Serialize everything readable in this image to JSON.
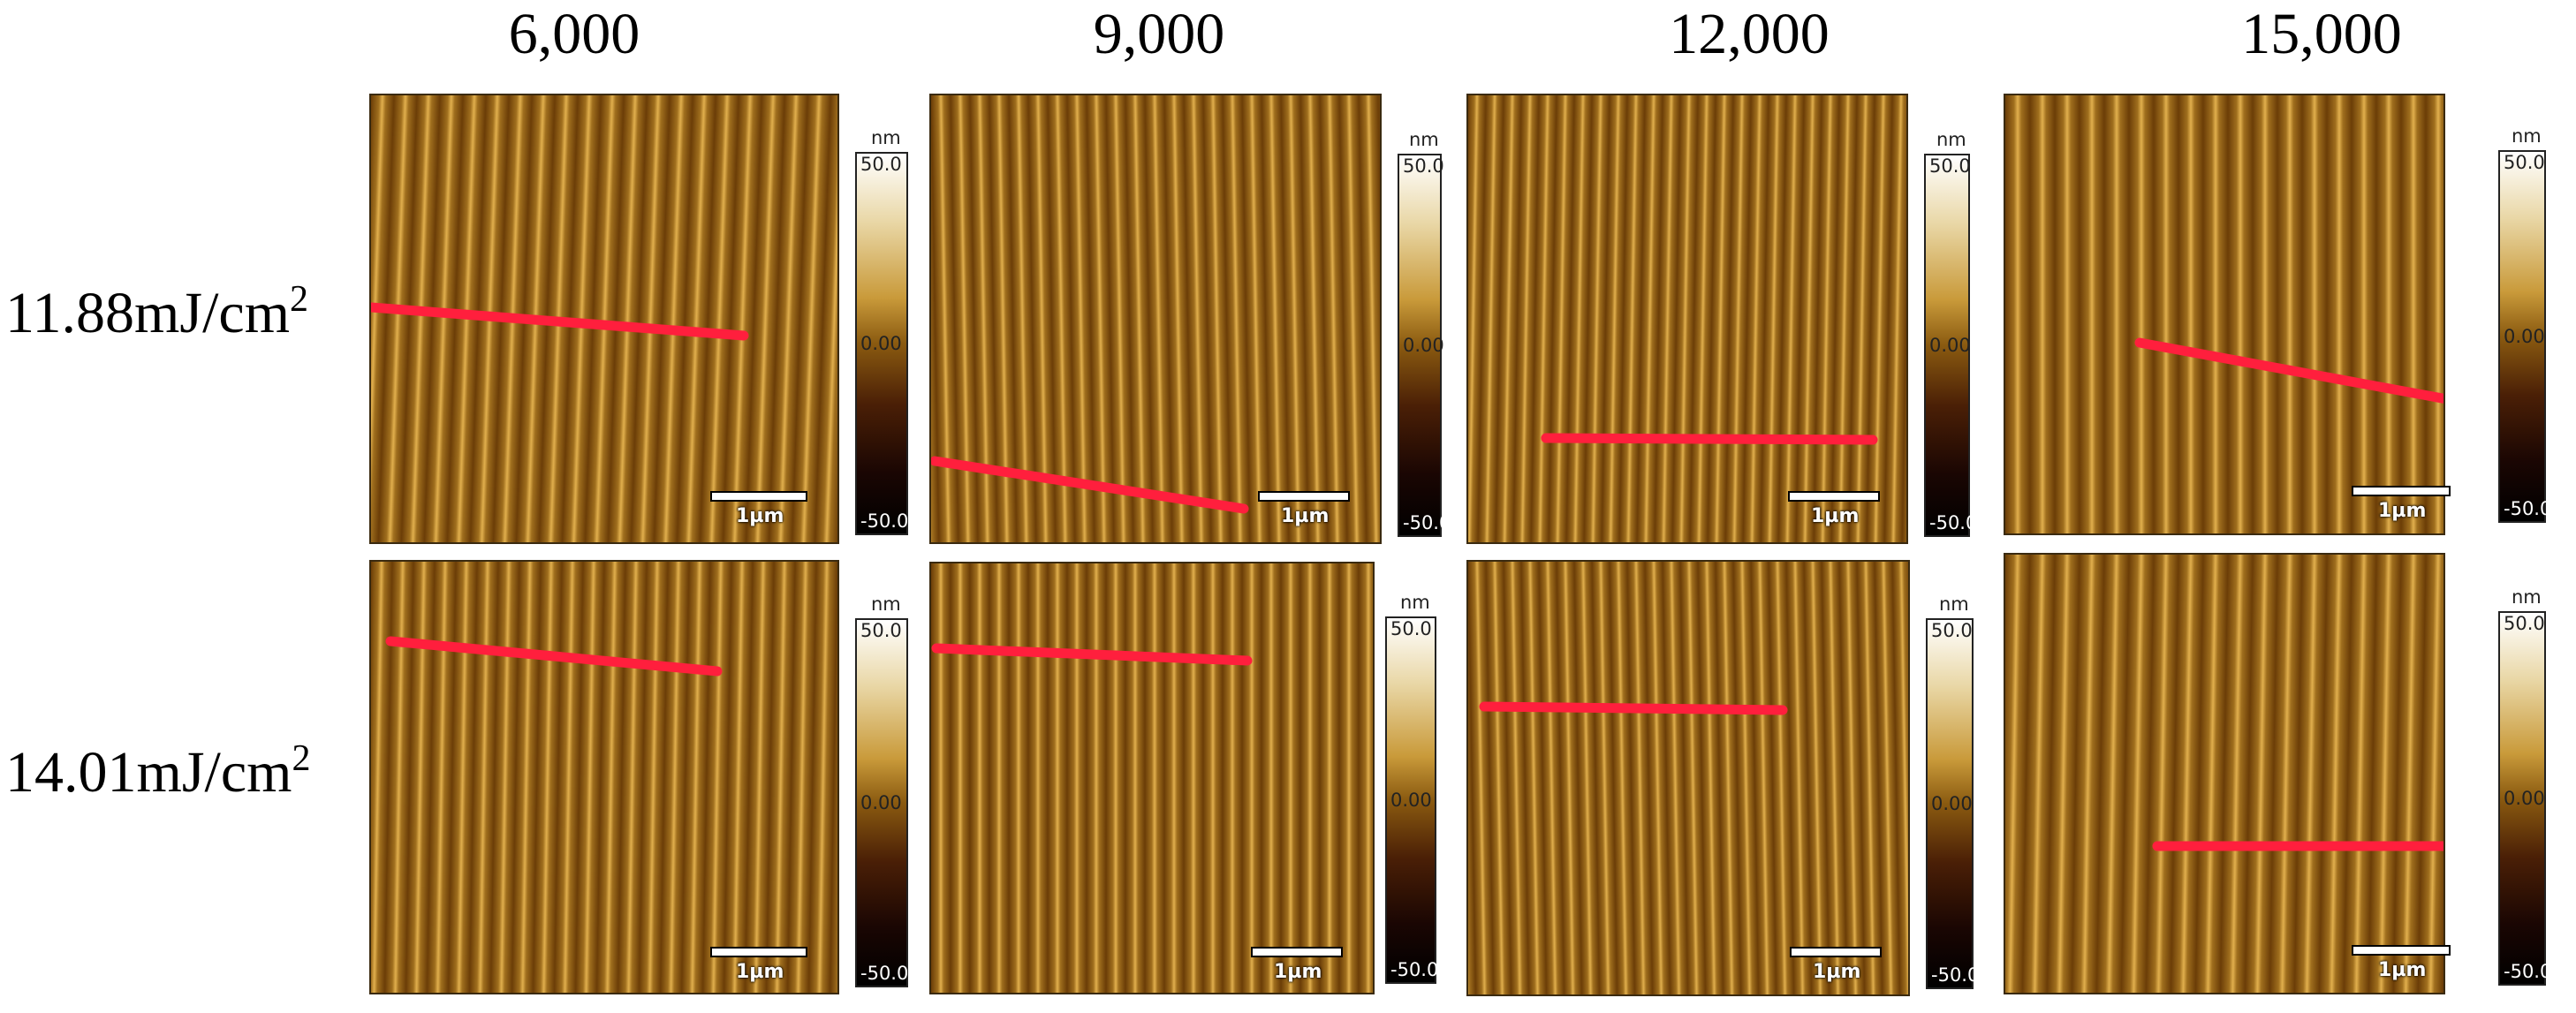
{
  "columns": [
    {
      "title": "6,000"
    },
    {
      "title": "9,000"
    },
    {
      "title": "12,000"
    },
    {
      "title": "15,000"
    }
  ],
  "rows": [
    {
      "label_main": "11.88mJ/cm",
      "label_sup": "2"
    },
    {
      "label_main": "14.01mJ/cm",
      "label_sup": "2"
    }
  ],
  "colorbar": {
    "unit": "nm",
    "max": "50.0",
    "mid": "0.00",
    "min": "-50.0"
  },
  "scalebar": {
    "label": "1µm"
  },
  "colors": {
    "stripe_light": "#e2b04e",
    "stripe_dark": "#6b3d07",
    "profile_line": "#ff1f3d"
  }
}
